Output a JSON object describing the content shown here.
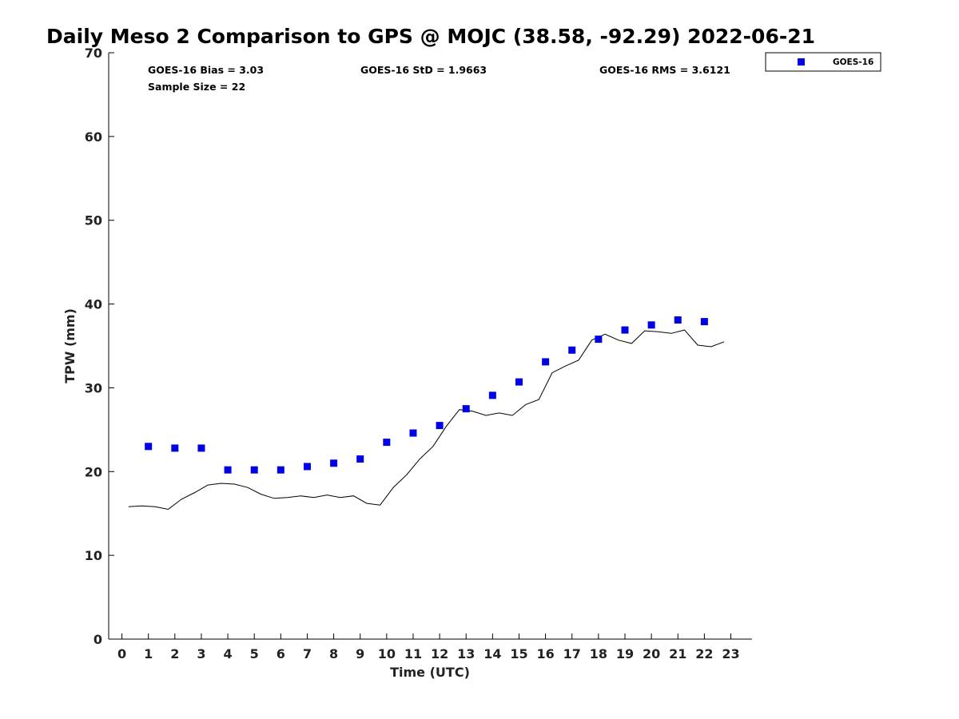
{
  "chart_data": {
    "type": "scatter",
    "title": "Daily Meso 2 Comparison to GPS @ MOJC (38.58, -92.29) 2022-06-21",
    "xlabel": "Time (UTC)",
    "ylabel": "TPW (mm)",
    "xlim": [
      -0.5,
      23.8
    ],
    "ylim": [
      0,
      70
    ],
    "xticks": [
      0,
      1,
      2,
      3,
      4,
      5,
      6,
      7,
      8,
      9,
      10,
      11,
      12,
      13,
      14,
      15,
      16,
      17,
      18,
      19,
      20,
      21,
      22,
      23
    ],
    "yticks": [
      0,
      10,
      20,
      30,
      40,
      50,
      60,
      70
    ],
    "grid": false,
    "legend_position": "top-right (outside)",
    "stats": {
      "bias": "GOES-16 Bias = 3.03",
      "sample_size": "Sample Size = 22",
      "std": "GOES-16 StD = 1.9663",
      "rms": "GOES-16 RMS = 3.6121"
    },
    "series": [
      {
        "name": "GOES-16",
        "kind": "scatter",
        "color": "#0000e6",
        "marker": "square",
        "x": [
          1,
          2,
          3,
          4,
          5,
          6,
          7,
          8,
          9,
          10,
          11,
          12,
          13,
          14,
          15,
          16,
          17,
          18,
          19,
          20,
          21,
          22
        ],
        "y": [
          23.0,
          22.8,
          22.8,
          20.2,
          20.2,
          20.2,
          20.6,
          21.0,
          21.5,
          23.5,
          24.6,
          25.5,
          27.5,
          29.1,
          30.7,
          33.1,
          34.5,
          35.8,
          36.9,
          37.5,
          38.1,
          37.9
        ]
      },
      {
        "kind": "line",
        "color": "#000000",
        "x": [
          0.25,
          0.75,
          1.25,
          1.75,
          2.25,
          2.75,
          3.25,
          3.75,
          4.25,
          4.75,
          5.25,
          5.75,
          6.25,
          6.75,
          7.25,
          7.75,
          8.25,
          8.75,
          9.25,
          9.75,
          10.25,
          10.75,
          11.25,
          11.75,
          12.25,
          12.75,
          13.25,
          13.75,
          14.25,
          14.75,
          15.25,
          15.75,
          16.25,
          16.75,
          17.25,
          17.75,
          18.25,
          18.75,
          19.25,
          19.75,
          20.25,
          20.75,
          21.25,
          21.75,
          22.25,
          22.75
        ],
        "y": [
          15.8,
          15.9,
          15.8,
          15.5,
          16.7,
          17.5,
          18.4,
          18.6,
          18.5,
          18.1,
          17.3,
          16.8,
          16.9,
          17.1,
          16.9,
          17.2,
          16.9,
          17.1,
          16.2,
          16.0,
          18.1,
          19.6,
          21.5,
          23.0,
          25.4,
          27.4,
          27.2,
          26.7,
          27.0,
          26.7,
          28.0,
          28.6,
          31.8,
          32.6,
          33.3,
          35.7,
          36.4,
          35.7,
          35.3,
          36.8,
          36.7,
          36.5,
          36.9,
          35.1,
          34.9,
          35.5
        ]
      }
    ]
  }
}
